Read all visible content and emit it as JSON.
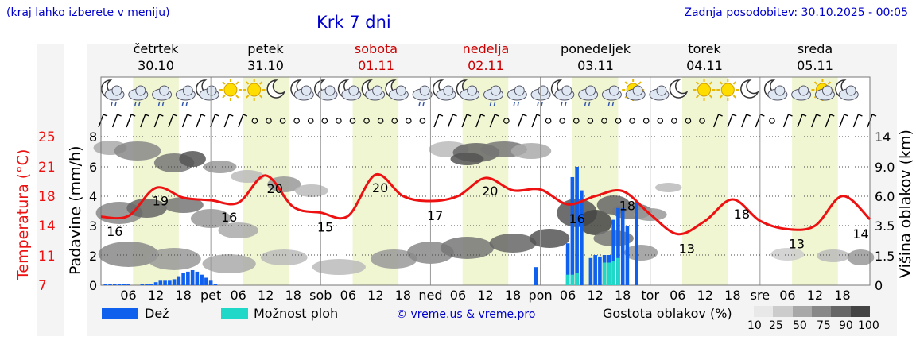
{
  "header": {
    "region_hint": "(kraj lahko izberete v meniju)",
    "title": "Krk 7 dni",
    "last_update": "Zadnja posodobitev: 30.10.2025 - 00:05"
  },
  "days": [
    {
      "name": "četrtek",
      "date": "30.10",
      "weekend": false,
      "abbr": ""
    },
    {
      "name": "petek",
      "date": "31.10",
      "weekend": false,
      "abbr": "pet"
    },
    {
      "name": "sobota",
      "date": "01.11",
      "weekend": true,
      "abbr": "sob"
    },
    {
      "name": "nedelja",
      "date": "02.11",
      "weekend": true,
      "abbr": "ned"
    },
    {
      "name": "ponedeljek",
      "date": "03.11",
      "weekend": false,
      "abbr": "pon"
    },
    {
      "name": "torek",
      "date": "04.11",
      "weekend": false,
      "abbr": "tor"
    },
    {
      "name": "sreda",
      "date": "05.11",
      "weekend": false,
      "abbr": "sre"
    }
  ],
  "hour_ticks": [
    "06",
    "12",
    "18"
  ],
  "axes": {
    "temp_label": "Temperatura (°C)",
    "temp_ticks": [
      "25",
      "21",
      "18",
      "14",
      "11",
      "7"
    ],
    "precip_label": "Padavine (mm/h)",
    "precip_ticks": [
      "8",
      "6",
      "4",
      "3",
      "2",
      "0"
    ],
    "cloud_label": "Višina oblakov (km)",
    "cloud_ticks": [
      "14",
      "9.0",
      "6.0",
      "3.5",
      "1.5",
      "0"
    ]
  },
  "legend": {
    "rain": "Dež",
    "showers": "Možnost ploh",
    "credit": "© vreme.us & vreme.pro",
    "cloud_density": "Gostota oblakov (%)",
    "density_levels": [
      "10",
      "25",
      "50",
      "75",
      "90",
      "100"
    ],
    "colors": {
      "rain": "#1060ee",
      "showers": "#20d8c8",
      "temp": "#ee1111"
    }
  },
  "icons": [
    "moon-cloud-rain",
    "cloud-rain",
    "cloud-rain",
    "cloud-rain",
    "moon-cloud",
    "sun",
    "sun",
    "moon",
    "moon-cloud",
    "moon-cloud",
    "moon-cloud",
    "moon-cloud",
    "moon-cloud",
    "cloud-rain",
    "moon-cloud",
    "moon-cloud",
    "cloud-rain",
    "cloud-rain",
    "cloud-rain",
    "moon-cloud-rain",
    "cloud-rain",
    "cloud-rain",
    "sun-cloud",
    "cloud",
    "moon",
    "sun",
    "sun",
    "moon",
    "moon-cloud",
    "cloud",
    "sun-cloud",
    "moon-cloud"
  ],
  "chart_data": {
    "type": "line",
    "title": "Krk 7 dni",
    "x_range_hours": [
      0,
      168
    ],
    "temperature": {
      "name": "Temperatura (°C)",
      "ylim": [
        7,
        25
      ],
      "points": [
        [
          0,
          15.3
        ],
        [
          6,
          15.4
        ],
        [
          12,
          18.8
        ],
        [
          18,
          17.6
        ],
        [
          24,
          17.3
        ],
        [
          30,
          17.0
        ],
        [
          36,
          20.3
        ],
        [
          42,
          16.5
        ],
        [
          48,
          15.8
        ],
        [
          54,
          15.4
        ],
        [
          60,
          20.4
        ],
        [
          66,
          17.8
        ],
        [
          72,
          17.2
        ],
        [
          78,
          17.8
        ],
        [
          84,
          20.0
        ],
        [
          90,
          18.5
        ],
        [
          96,
          18.6
        ],
        [
          102,
          16.8
        ],
        [
          108,
          17.8
        ],
        [
          114,
          18.4
        ],
        [
          120,
          15.6
        ],
        [
          126,
          13.2
        ],
        [
          132,
          14.8
        ],
        [
          138,
          17.4
        ],
        [
          144,
          14.8
        ],
        [
          150,
          13.8
        ],
        [
          156,
          14.2
        ],
        [
          162,
          17.8
        ],
        [
          168,
          15.0
        ]
      ],
      "labels": [
        {
          "h": 3,
          "v": "16"
        },
        {
          "h": 13,
          "v": "19"
        },
        {
          "h": 28,
          "v": "16"
        },
        {
          "h": 38,
          "v": "20"
        },
        {
          "h": 49,
          "v": "15"
        },
        {
          "h": 61,
          "v": "20"
        },
        {
          "h": 73,
          "v": "17"
        },
        {
          "h": 85,
          "v": "20"
        },
        {
          "h": 104,
          "v": "16"
        },
        {
          "h": 115,
          "v": "18"
        },
        {
          "h": 128,
          "v": "13"
        },
        {
          "h": 140,
          "v": "18"
        },
        {
          "h": 152,
          "v": "13"
        },
        {
          "h": 166,
          "v": "14"
        }
      ]
    },
    "precipitation": {
      "name": "Padavine (mm/h)",
      "ylim": [
        0,
        8
      ],
      "rain": [
        [
          1,
          0.1
        ],
        [
          2,
          0.1
        ],
        [
          3,
          0.1
        ],
        [
          4,
          0.1
        ],
        [
          5,
          0.1
        ],
        [
          6,
          0.1
        ],
        [
          9,
          0.1
        ],
        [
          10,
          0.1
        ],
        [
          11,
          0.1
        ],
        [
          12,
          0.2
        ],
        [
          13,
          0.3
        ],
        [
          14,
          0.3
        ],
        [
          15,
          0.3
        ],
        [
          16,
          0.4
        ],
        [
          17,
          0.6
        ],
        [
          18,
          0.8
        ],
        [
          19,
          0.9
        ],
        [
          20,
          1.0
        ],
        [
          21,
          0.9
        ],
        [
          22,
          0.7
        ],
        [
          23,
          0.5
        ],
        [
          24,
          0.3
        ],
        [
          25,
          0.1
        ],
        [
          95,
          1.2
        ],
        [
          102,
          2.4
        ],
        [
          103,
          5.3
        ],
        [
          104,
          6.0
        ],
        [
          105,
          4.4
        ],
        [
          107,
          1.8
        ],
        [
          108,
          2.0
        ],
        [
          109,
          1.9
        ],
        [
          110,
          2.0
        ],
        [
          111,
          2.0
        ],
        [
          112,
          3.2
        ],
        [
          113,
          3.6
        ],
        [
          114,
          3.6
        ],
        [
          115,
          3.0
        ],
        [
          117,
          3.8
        ]
      ],
      "showers": [
        [
          102,
          0.7
        ],
        [
          103,
          0.7
        ],
        [
          104,
          0.8
        ],
        [
          110,
          1.5
        ],
        [
          111,
          1.5
        ],
        [
          112,
          1.6
        ],
        [
          113,
          1.8
        ]
      ]
    },
    "cloud_height_km": {
      "ylim": [
        0,
        14
      ]
    }
  }
}
